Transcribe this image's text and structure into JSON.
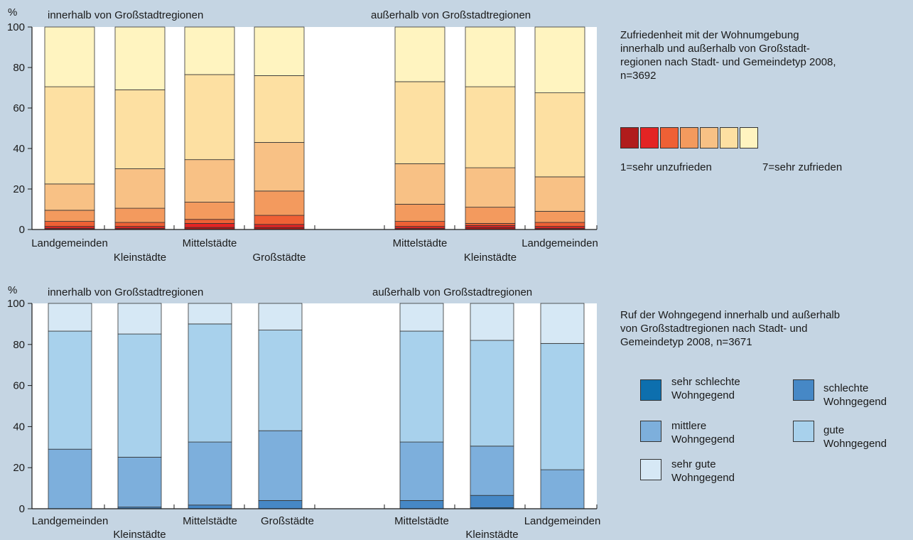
{
  "chart_data": [
    {
      "type": "bar",
      "stacked": true,
      "ylabel": "%",
      "ylim": [
        0,
        100
      ],
      "yticks": [
        0,
        20,
        40,
        60,
        80,
        100
      ],
      "group_titles": [
        "innerhalb von Großstadtregionen",
        "außerhalb von Großstadtregionen"
      ],
      "categories": [
        "Landgemeinden",
        "Kleinstädte",
        "Mittelstädte",
        "Großstädte",
        "Mittelstädte",
        "Kleinstädte",
        "Landgemeinden"
      ],
      "colors": [
        "#b01c1c",
        "#e32424",
        "#ef6035",
        "#f39a5e",
        "#f8c185",
        "#fde0a2",
        "#fff4c0"
      ],
      "series": [
        {
          "name": "1",
          "values": [
            0.5,
            0.5,
            1.0,
            1.0,
            0.5,
            1.0,
            0.5
          ]
        },
        {
          "name": "2",
          "values": [
            1.0,
            1.0,
            2.0,
            1.5,
            1.0,
            1.0,
            1.0
          ]
        },
        {
          "name": "3",
          "values": [
            2.5,
            2.0,
            2.0,
            4.5,
            2.5,
            1.0,
            2.0
          ]
        },
        {
          "name": "4",
          "values": [
            5.5,
            7.0,
            8.5,
            12.0,
            8.5,
            8.0,
            5.5
          ]
        },
        {
          "name": "5",
          "values": [
            13.0,
            19.5,
            21.0,
            24.0,
            20.0,
            19.5,
            17.0
          ]
        },
        {
          "name": "6",
          "values": [
            48.0,
            39.0,
            42.0,
            33.0,
            40.5,
            40.0,
            41.5
          ]
        },
        {
          "name": "7",
          "values": [
            29.5,
            31.0,
            23.5,
            24.0,
            27.0,
            29.5,
            32.5
          ]
        }
      ]
    },
    {
      "type": "bar",
      "stacked": true,
      "ylabel": "%",
      "ylim": [
        0,
        100
      ],
      "yticks": [
        0,
        20,
        40,
        60,
        80,
        100
      ],
      "group_titles": [
        "innerhalb von Großstadtregionen",
        "außerhalb von Großstadtregionen"
      ],
      "categories": [
        "Landgemeinden",
        "Kleinstädte",
        "Mittelstädte",
        "Großstädte",
        "Mittelstädte",
        "Kleinstädte",
        "Landgemeinden"
      ],
      "colors": [
        "#0d6fae",
        "#4688c6",
        "#7dafdc",
        "#a8d1ec",
        "#d6e8f5"
      ],
      "series": [
        {
          "name": "sehr schlechte Wohngegend",
          "values": [
            0.0,
            0.0,
            0.0,
            0.0,
            0.0,
            0.5,
            0.0
          ]
        },
        {
          "name": "schlechte Wohngegend",
          "values": [
            0.0,
            0.8,
            1.8,
            4.0,
            4.0,
            6.0,
            0.0
          ]
        },
        {
          "name": "mittlere Wohngegend",
          "values": [
            29.0,
            24.3,
            30.7,
            34.0,
            28.5,
            24.0,
            19.0
          ]
        },
        {
          "name": "gute Wohngegend",
          "values": [
            57.5,
            60.0,
            57.5,
            49.0,
            54.0,
            51.5,
            61.5
          ]
        },
        {
          "name": "sehr gute Wohngegend",
          "values": [
            13.5,
            14.9,
            10.0,
            13.0,
            13.5,
            18.0,
            19.5
          ]
        }
      ]
    }
  ],
  "top_panel": {
    "description": [
      "Zufriedenheit mit der Wohnumgebung",
      "innerhalb und außerhalb von Großstadt-",
      "regionen nach Stadt- und Gemeindetyp 2008,",
      "n=3692"
    ],
    "scale_left": "1=sehr unzufrieden",
    "scale_right": "7=sehr zufrieden"
  },
  "bottom_panel": {
    "description": [
      "Ruf der Wohngegend innerhalb und außerhalb",
      "von Großstadtregionen nach Stadt- und",
      "Gemeindetyp 2008, n=3671"
    ],
    "legend": [
      {
        "line1": "sehr schlechte",
        "line2": "Wohngegend",
        "color": "#0d6fae"
      },
      {
        "line1": "schlechte",
        "line2": "Wohngegend",
        "color": "#4688c6"
      },
      {
        "line1": "mittlere",
        "line2": "Wohngegend",
        "color": "#7dafdc"
      },
      {
        "line1": "gute",
        "line2": "Wohngegend",
        "color": "#a8d1ec"
      },
      {
        "line1": "sehr gute",
        "line2": "Wohngegend",
        "color": "#d6e8f5"
      }
    ]
  }
}
